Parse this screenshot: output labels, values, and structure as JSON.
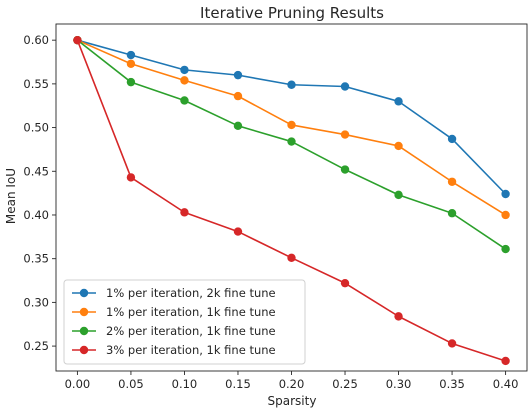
{
  "chart_data": {
    "type": "line",
    "title": "Iterative Pruning Results",
    "xlabel": "Sparsity",
    "ylabel": "Mean IoU",
    "x": [
      0.0,
      0.05,
      0.1,
      0.15,
      0.2,
      0.25,
      0.3,
      0.35,
      0.4
    ],
    "x_ticks": [
      "0.00",
      "0.05",
      "0.10",
      "0.15",
      "0.20",
      "0.25",
      "0.30",
      "0.35",
      "0.40"
    ],
    "y_ticks": [
      "0.25",
      "0.30",
      "0.35",
      "0.40",
      "0.45",
      "0.50",
      "0.55",
      "0.60"
    ],
    "xlim": [
      -0.02,
      0.42
    ],
    "ylim": [
      0.2215,
      0.6185
    ],
    "grid": false,
    "legend_position": "lower-left",
    "series": [
      {
        "name": "1% per iteration, 2k fine tune",
        "color": "#1f77b4",
        "values": [
          0.6,
          0.583,
          0.566,
          0.56,
          0.549,
          0.547,
          0.53,
          0.487,
          0.424
        ]
      },
      {
        "name": "1% per iteration, 1k fine tune",
        "color": "#ff7f0e",
        "values": [
          0.6,
          0.573,
          0.554,
          0.536,
          0.503,
          0.492,
          0.479,
          0.438,
          0.4
        ]
      },
      {
        "name": "2% per iteration, 1k fine tune",
        "color": "#2ca02c",
        "values": [
          0.6,
          0.552,
          0.531,
          0.502,
          0.484,
          0.452,
          0.423,
          0.402,
          0.361
        ]
      },
      {
        "name": "3% per iteration, 1k fine tune",
        "color": "#d62728",
        "values": [
          0.6,
          0.443,
          0.403,
          0.381,
          0.351,
          0.322,
          0.284,
          0.253,
          0.233
        ]
      }
    ]
  }
}
